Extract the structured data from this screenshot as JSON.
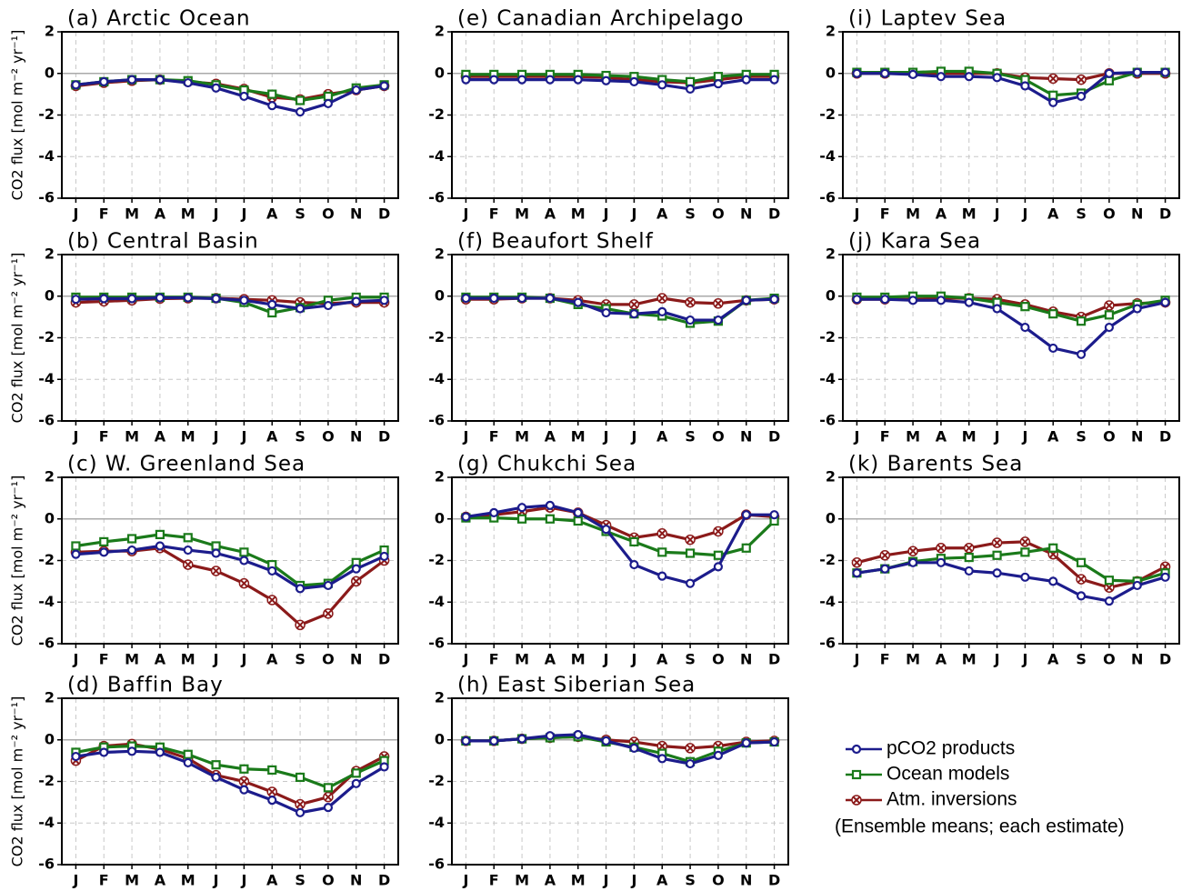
{
  "chart_data": [
    {
      "type": "line",
      "title": "(a)  Arctic Ocean",
      "ylabel": "CO2 flux [mol m⁻² yr⁻¹]",
      "categories": [
        "J",
        "F",
        "M",
        "A",
        "M",
        "J",
        "J",
        "A",
        "S",
        "O",
        "N",
        "D"
      ],
      "ylim": [
        -6,
        2
      ],
      "yticks": [
        -6,
        -4,
        -2,
        0,
        2
      ],
      "grid": true,
      "series": [
        {
          "name": "pCO2 products",
          "color": "#1c1c8c",
          "marker": "circle",
          "values": [
            -0.55,
            -0.4,
            -0.3,
            -0.3,
            -0.45,
            -0.7,
            -1.1,
            -1.55,
            -1.85,
            -1.45,
            -0.8,
            -0.6
          ]
        },
        {
          "name": "Ocean models",
          "color": "#1a7a1a",
          "marker": "square",
          "values": [
            -0.55,
            -0.4,
            -0.3,
            -0.3,
            -0.35,
            -0.55,
            -0.8,
            -1.0,
            -1.3,
            -1.1,
            -0.7,
            -0.55
          ]
        },
        {
          "name": "Atm. inversions",
          "color": "#8b1a1a",
          "marker": "cross",
          "values": [
            -0.6,
            -0.45,
            -0.35,
            -0.3,
            -0.4,
            -0.5,
            -0.75,
            -1.15,
            -1.25,
            -1.0,
            -0.8,
            -0.6
          ]
        }
      ]
    },
    {
      "type": "line",
      "title": "(b)  Central Basin",
      "ylabel": "CO2 flux [mol m⁻² yr⁻¹]",
      "categories": [
        "J",
        "F",
        "M",
        "A",
        "M",
        "J",
        "J",
        "A",
        "S",
        "O",
        "N",
        "D"
      ],
      "ylim": [
        -6,
        2
      ],
      "yticks": [
        -6,
        -4,
        -2,
        0,
        2
      ],
      "grid": true,
      "series": [
        {
          "name": "pCO2 products",
          "color": "#1c1c8c",
          "marker": "circle",
          "values": [
            -0.15,
            -0.12,
            -0.12,
            -0.08,
            -0.08,
            -0.12,
            -0.2,
            -0.4,
            -0.6,
            -0.45,
            -0.25,
            -0.2
          ]
        },
        {
          "name": "Ocean models",
          "color": "#1a7a1a",
          "marker": "square",
          "values": [
            -0.05,
            -0.05,
            -0.05,
            -0.05,
            -0.05,
            -0.1,
            -0.3,
            -0.8,
            -0.55,
            -0.2,
            -0.05,
            -0.05
          ]
        },
        {
          "name": "Atm. inversions",
          "color": "#8b1a1a",
          "marker": "cross",
          "values": [
            -0.3,
            -0.25,
            -0.2,
            -0.12,
            -0.1,
            -0.1,
            -0.15,
            -0.2,
            -0.3,
            -0.35,
            -0.3,
            -0.3
          ]
        }
      ]
    },
    {
      "type": "line",
      "title": "(c)  W. Greenland Sea",
      "ylabel": "CO2 flux [mol m⁻² yr⁻¹]",
      "categories": [
        "J",
        "F",
        "M",
        "A",
        "M",
        "J",
        "J",
        "A",
        "S",
        "O",
        "N",
        "D"
      ],
      "ylim": [
        -6,
        2
      ],
      "yticks": [
        -6,
        -4,
        -2,
        0,
        2
      ],
      "grid": true,
      "series": [
        {
          "name": "pCO2 products",
          "color": "#1c1c8c",
          "marker": "circle",
          "values": [
            -1.7,
            -1.6,
            -1.5,
            -1.3,
            -1.5,
            -1.65,
            -2.0,
            -2.5,
            -3.35,
            -3.2,
            -2.4,
            -1.8
          ]
        },
        {
          "name": "Ocean models",
          "color": "#1a7a1a",
          "marker": "square",
          "values": [
            -1.3,
            -1.1,
            -0.95,
            -0.75,
            -0.9,
            -1.3,
            -1.6,
            -2.2,
            -3.2,
            -3.1,
            -2.1,
            -1.5
          ]
        },
        {
          "name": "Atm. inversions",
          "color": "#8b1a1a",
          "marker": "cross",
          "values": [
            -1.6,
            -1.55,
            -1.55,
            -1.4,
            -2.2,
            -2.5,
            -3.1,
            -3.9,
            -5.1,
            -4.55,
            -3.0,
            -2.0
          ]
        }
      ]
    },
    {
      "type": "line",
      "title": "(d)  Baffin Bay",
      "ylabel": "CO2 flux [mol m⁻² yr⁻¹]",
      "categories": [
        "J",
        "F",
        "M",
        "A",
        "M",
        "J",
        "J",
        "A",
        "S",
        "O",
        "N",
        "D"
      ],
      "ylim": [
        -6,
        2
      ],
      "yticks": [
        -6,
        -4,
        -2,
        0,
        2
      ],
      "grid": true,
      "series": [
        {
          "name": "pCO2 products",
          "color": "#1c1c8c",
          "marker": "circle",
          "values": [
            -0.8,
            -0.6,
            -0.55,
            -0.6,
            -1.1,
            -1.8,
            -2.4,
            -2.9,
            -3.5,
            -3.25,
            -2.1,
            -1.3
          ]
        },
        {
          "name": "Ocean models",
          "color": "#1a7a1a",
          "marker": "square",
          "values": [
            -0.6,
            -0.35,
            -0.3,
            -0.35,
            -0.7,
            -1.2,
            -1.4,
            -1.45,
            -1.8,
            -2.3,
            -1.6,
            -1.0
          ]
        },
        {
          "name": "Atm. inversions",
          "color": "#8b1a1a",
          "marker": "cross",
          "values": [
            -1.0,
            -0.3,
            -0.2,
            -0.45,
            -0.9,
            -1.7,
            -2.0,
            -2.5,
            -3.1,
            -2.75,
            -1.5,
            -0.8
          ]
        }
      ]
    },
    {
      "type": "line",
      "title": "(e)  Canadian Archipelago",
      "categories": [
        "J",
        "F",
        "M",
        "A",
        "M",
        "J",
        "J",
        "A",
        "S",
        "O",
        "N",
        "D"
      ],
      "ylim": [
        -6,
        2
      ],
      "yticks": [
        -6,
        -4,
        -2,
        0,
        2
      ],
      "grid": true,
      "series": [
        {
          "name": "pCO2 products",
          "color": "#1c1c8c",
          "marker": "circle",
          "values": [
            -0.3,
            -0.3,
            -0.3,
            -0.3,
            -0.3,
            -0.35,
            -0.4,
            -0.55,
            -0.75,
            -0.5,
            -0.3,
            -0.3
          ]
        },
        {
          "name": "Ocean models",
          "color": "#1a7a1a",
          "marker": "square",
          "values": [
            -0.05,
            -0.05,
            -0.05,
            -0.05,
            -0.05,
            -0.1,
            -0.15,
            -0.3,
            -0.4,
            -0.15,
            -0.05,
            -0.05
          ]
        },
        {
          "name": "Atm. inversions",
          "color": "#8b1a1a",
          "marker": "cross",
          "values": [
            -0.15,
            -0.15,
            -0.15,
            -0.15,
            -0.15,
            -0.2,
            -0.3,
            -0.4,
            -0.45,
            -0.3,
            -0.15,
            -0.15
          ]
        }
      ]
    },
    {
      "type": "line",
      "title": "(f)  Beaufort Shelf",
      "categories": [
        "J",
        "F",
        "M",
        "A",
        "M",
        "J",
        "J",
        "A",
        "S",
        "O",
        "N",
        "D"
      ],
      "ylim": [
        -6,
        2
      ],
      "yticks": [
        -6,
        -4,
        -2,
        0,
        2
      ],
      "grid": true,
      "series": [
        {
          "name": "pCO2 products",
          "color": "#1c1c8c",
          "marker": "circle",
          "values": [
            -0.1,
            -0.1,
            -0.1,
            -0.1,
            -0.3,
            -0.8,
            -0.85,
            -0.75,
            -1.15,
            -1.15,
            -0.2,
            -0.15
          ]
        },
        {
          "name": "Ocean models",
          "color": "#1a7a1a",
          "marker": "square",
          "values": [
            -0.05,
            -0.05,
            -0.05,
            -0.1,
            -0.4,
            -0.6,
            -0.85,
            -0.95,
            -1.3,
            -1.2,
            -0.2,
            -0.1
          ]
        },
        {
          "name": "Atm. inversions",
          "color": "#8b1a1a",
          "marker": "cross",
          "values": [
            -0.15,
            -0.15,
            -0.1,
            -0.1,
            -0.2,
            -0.4,
            -0.4,
            -0.1,
            -0.3,
            -0.35,
            -0.2,
            -0.15
          ]
        }
      ]
    },
    {
      "type": "line",
      "title": "(g)  Chukchi Sea",
      "categories": [
        "J",
        "F",
        "M",
        "A",
        "M",
        "J",
        "J",
        "A",
        "S",
        "O",
        "N",
        "D"
      ],
      "ylim": [
        -6,
        2
      ],
      "yticks": [
        -6,
        -4,
        -2,
        0,
        2
      ],
      "grid": true,
      "series": [
        {
          "name": "pCO2 products",
          "color": "#1c1c8c",
          "marker": "circle",
          "values": [
            0.1,
            0.3,
            0.55,
            0.65,
            0.3,
            -0.5,
            -2.2,
            -2.75,
            -3.1,
            -2.3,
            0.2,
            0.2
          ]
        },
        {
          "name": "Ocean models",
          "color": "#1a7a1a",
          "marker": "square",
          "values": [
            0.05,
            0.05,
            0.0,
            0.0,
            -0.1,
            -0.6,
            -1.1,
            -1.6,
            -1.65,
            -1.75,
            -1.4,
            -0.1
          ]
        },
        {
          "name": "Atm. inversions",
          "color": "#8b1a1a",
          "marker": "cross",
          "values": [
            0.1,
            0.2,
            0.35,
            0.55,
            0.3,
            -0.3,
            -0.9,
            -0.7,
            -1.0,
            -0.6,
            0.2,
            0.1
          ]
        }
      ]
    },
    {
      "type": "line",
      "title": "(h)  East Siberian Sea",
      "categories": [
        "J",
        "F",
        "M",
        "A",
        "M",
        "J",
        "J",
        "A",
        "S",
        "O",
        "N",
        "D"
      ],
      "ylim": [
        -6,
        2
      ],
      "yticks": [
        -6,
        -4,
        -2,
        0,
        2
      ],
      "grid": true,
      "series": [
        {
          "name": "pCO2 products",
          "color": "#1c1c8c",
          "marker": "circle",
          "values": [
            -0.05,
            -0.05,
            0.05,
            0.2,
            0.25,
            -0.05,
            -0.4,
            -0.9,
            -1.15,
            -0.75,
            -0.15,
            -0.1
          ]
        },
        {
          "name": "Ocean models",
          "color": "#1a7a1a",
          "marker": "square",
          "values": [
            -0.05,
            -0.05,
            0.05,
            0.1,
            0.15,
            -0.1,
            -0.35,
            -0.65,
            -1.05,
            -0.55,
            -0.15,
            -0.1
          ]
        },
        {
          "name": "Atm. inversions",
          "color": "#8b1a1a",
          "marker": "cross",
          "values": [
            -0.05,
            -0.05,
            0.05,
            0.1,
            0.15,
            0.0,
            -0.1,
            -0.3,
            -0.4,
            -0.3,
            -0.1,
            -0.05
          ]
        }
      ]
    },
    {
      "type": "line",
      "title": "(i)  Laptev Sea",
      "categories": [
        "J",
        "F",
        "M",
        "A",
        "M",
        "J",
        "J",
        "A",
        "S",
        "O",
        "N",
        "D"
      ],
      "ylim": [
        -6,
        2
      ],
      "yticks": [
        -6,
        -4,
        -2,
        0,
        2
      ],
      "grid": true,
      "series": [
        {
          "name": "pCO2 products",
          "color": "#1c1c8c",
          "marker": "circle",
          "values": [
            0.0,
            0.0,
            -0.05,
            -0.15,
            -0.15,
            -0.2,
            -0.6,
            -1.4,
            -1.1,
            0.0,
            0.05,
            0.05
          ]
        },
        {
          "name": "Ocean models",
          "color": "#1a7a1a",
          "marker": "square",
          "values": [
            0.05,
            0.05,
            0.05,
            0.1,
            0.1,
            0.0,
            -0.3,
            -1.05,
            -0.95,
            -0.35,
            0.05,
            0.05
          ]
        },
        {
          "name": "Atm. inversions",
          "color": "#8b1a1a",
          "marker": "cross",
          "values": [
            0.0,
            0.0,
            0.0,
            0.0,
            0.0,
            0.0,
            -0.2,
            -0.25,
            -0.3,
            0.0,
            0.0,
            0.0
          ]
        }
      ]
    },
    {
      "type": "line",
      "title": "(j)  Kara Sea",
      "categories": [
        "J",
        "F",
        "M",
        "A",
        "M",
        "J",
        "J",
        "A",
        "S",
        "O",
        "N",
        "D"
      ],
      "ylim": [
        -6,
        2
      ],
      "yticks": [
        -6,
        -4,
        -2,
        0,
        2
      ],
      "grid": true,
      "series": [
        {
          "name": "pCO2 products",
          "color": "#1c1c8c",
          "marker": "circle",
          "values": [
            -0.15,
            -0.15,
            -0.2,
            -0.2,
            -0.3,
            -0.6,
            -1.5,
            -2.5,
            -2.8,
            -1.5,
            -0.6,
            -0.3
          ]
        },
        {
          "name": "Ocean models",
          "color": "#1a7a1a",
          "marker": "square",
          "values": [
            -0.05,
            -0.05,
            0.0,
            0.0,
            -0.1,
            -0.3,
            -0.5,
            -0.85,
            -1.2,
            -0.9,
            -0.4,
            -0.2
          ]
        },
        {
          "name": "Atm. inversions",
          "color": "#8b1a1a",
          "marker": "cross",
          "values": [
            -0.15,
            -0.15,
            -0.15,
            -0.1,
            -0.1,
            -0.15,
            -0.4,
            -0.75,
            -1.0,
            -0.45,
            -0.35,
            -0.3
          ]
        }
      ]
    },
    {
      "type": "line",
      "title": "(k)  Barents Sea",
      "categories": [
        "J",
        "F",
        "M",
        "A",
        "M",
        "J",
        "J",
        "A",
        "S",
        "O",
        "N",
        "D"
      ],
      "ylim": [
        -6,
        2
      ],
      "yticks": [
        -6,
        -4,
        -2,
        0,
        2
      ],
      "grid": true,
      "series": [
        {
          "name": "pCO2 products",
          "color": "#1c1c8c",
          "marker": "circle",
          "values": [
            -2.6,
            -2.4,
            -2.1,
            -2.1,
            -2.5,
            -2.6,
            -2.8,
            -3.0,
            -3.7,
            -3.95,
            -3.2,
            -2.8
          ]
        },
        {
          "name": "Ocean models",
          "color": "#1a7a1a",
          "marker": "square",
          "values": [
            -2.6,
            -2.4,
            -2.05,
            -1.9,
            -1.85,
            -1.75,
            -1.6,
            -1.4,
            -2.1,
            -2.95,
            -3.0,
            -2.6
          ]
        },
        {
          "name": "Atm. inversions",
          "color": "#8b1a1a",
          "marker": "cross",
          "values": [
            -2.1,
            -1.75,
            -1.55,
            -1.4,
            -1.4,
            -1.15,
            -1.1,
            -1.7,
            -2.9,
            -3.3,
            -3.0,
            -2.3
          ]
        }
      ]
    }
  ],
  "legend_note": "(Ensemble means; each estimate)"
}
